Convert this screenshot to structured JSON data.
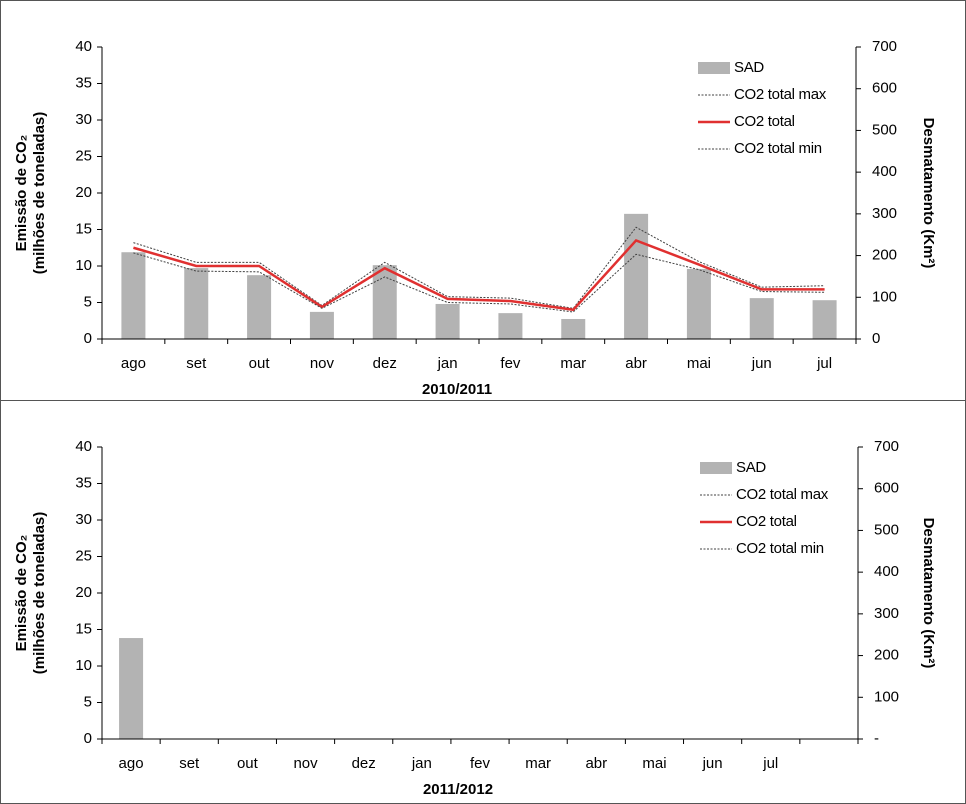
{
  "chart_data": [
    {
      "type": "bar_line",
      "categories": [
        "ago",
        "set",
        "out",
        "nov",
        "dez",
        "jan",
        "fev",
        "mar",
        "abr",
        "mai",
        "jun",
        "jul"
      ],
      "series": [
        {
          "name": "SAD",
          "type": "bar",
          "axis": "y2",
          "color": "#b3b3b3",
          "values": [
            208,
            170,
            153,
            65,
            177,
            84,
            62,
            48,
            300,
            168,
            98,
            93
          ]
        },
        {
          "name": "CO2 total max",
          "type": "line",
          "line_style": "dotted",
          "color": "#404040",
          "values": [
            13.2,
            10.5,
            10.5,
            4.6,
            10.5,
            5.8,
            5.6,
            4.2,
            15.3,
            10.6,
            7.1,
            7.3
          ]
        },
        {
          "name": "CO2 total",
          "type": "line",
          "line_style": "solid",
          "color": "#e03030",
          "values": [
            12.5,
            10,
            10,
            4.4,
            9.7,
            5.5,
            5.2,
            4.0,
            13.5,
            10.2,
            6.8,
            6.8
          ]
        },
        {
          "name": "CO2 total min",
          "type": "line",
          "line_style": "dotted",
          "color": "#404040",
          "values": [
            11.8,
            9.3,
            9.2,
            4.2,
            8.5,
            5.0,
            4.8,
            3.7,
            11.6,
            9.5,
            6.5,
            6.4
          ]
        }
      ],
      "ylim": [
        0,
        40
      ],
      "yticks": [
        0,
        5,
        10,
        15,
        20,
        25,
        30,
        35,
        40
      ],
      "y2lim": [
        0,
        700
      ],
      "y2ticks": [
        0,
        100,
        200,
        300,
        400,
        500,
        600,
        700
      ],
      "y_label": [
        "Emissão de CO₂",
        "(milhões de toneladas)"
      ],
      "y2_label": "Desmatamento (Km²)",
      "x_label": "2010/2011"
    },
    {
      "type": "bar_line",
      "categories": [
        "ago",
        "set",
        "out",
        "nov",
        "dez",
        "jan",
        "fev",
        "mar",
        "abr",
        "mai",
        "jun",
        "jul",
        null
      ],
      "series": [
        {
          "name": "SAD",
          "type": "bar",
          "axis": "y2",
          "color": "#b3b3b3",
          "values": [
            242,
            null,
            null,
            null,
            null,
            null,
            null,
            null,
            null,
            null,
            null,
            null,
            null
          ]
        },
        {
          "name": "CO2 total max",
          "type": "line",
          "line_style": "dotted",
          "color": "#404040",
          "values": [
            null,
            null,
            null,
            null,
            null,
            null,
            null,
            null,
            null,
            null,
            null,
            null,
            null
          ]
        },
        {
          "name": "CO2 total",
          "type": "line",
          "line_style": "solid",
          "color": "#e03030",
          "values": [
            null,
            null,
            null,
            null,
            null,
            null,
            null,
            null,
            null,
            null,
            null,
            null,
            null
          ]
        },
        {
          "name": "CO2 total min",
          "type": "line",
          "line_style": "dotted",
          "color": "#404040",
          "values": [
            null,
            null,
            null,
            null,
            null,
            null,
            null,
            null,
            null,
            null,
            null,
            null,
            null
          ]
        }
      ],
      "ylim": [
        0,
        40
      ],
      "yticks": [
        0,
        5,
        10,
        15,
        20,
        25,
        30,
        35,
        40
      ],
      "y2lim": [
        0,
        700
      ],
      "y2ticks": [
        {
          "value": 0,
          "label": "-"
        },
        100,
        200,
        300,
        400,
        500,
        600,
        700
      ],
      "y_label": [
        "Emissão de CO₂",
        "(milhões de toneladas)"
      ],
      "y2_label": "Desmatamento (Km²)",
      "x_label": "2011/2012"
    }
  ]
}
